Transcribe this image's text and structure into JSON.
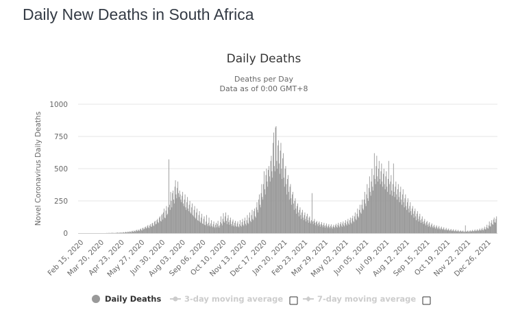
{
  "page": {
    "title": "Daily New Deaths in South Africa"
  },
  "chart_data": {
    "type": "bar",
    "title": "Daily Deaths",
    "subtitle_lines": [
      "Deaths per Day",
      "Data as of 0:00 GMT+8"
    ],
    "xlabel": "",
    "ylabel": "Novel Coronavirus Daily Deaths",
    "ylim": [
      0,
      1000
    ],
    "yticks": [
      0,
      250,
      500,
      750,
      1000
    ],
    "grid": true,
    "x_start_date": "2020-02-10",
    "x_end_date": "2022-01-09",
    "x_tick_labels": [
      "Feb 15, 2020",
      "Mar 20, 2020",
      "Apr 23, 2020",
      "May 27, 2020",
      "Jun 30, 2020",
      "Aug 03, 2020",
      "Sep 06, 2020",
      "Oct 10, 2020",
      "Nov 13, 2020",
      "Dec 17, 2020",
      "Jan 20, 2021",
      "Feb 23, 2021",
      "Mar 29, 2021",
      "May 02, 2021",
      "Jun 05, 2021",
      "Jul 09, 2021",
      "Aug 12, 2021",
      "Sep 15, 2021",
      "Oct 19, 2021",
      "Nov 22, 2021",
      "Dec 26, 2021"
    ],
    "x_tick_day_offsets": [
      5,
      39,
      73,
      107,
      141,
      175,
      209,
      243,
      277,
      311,
      345,
      379,
      413,
      447,
      481,
      515,
      549,
      583,
      617,
      651,
      685
    ],
    "series": [
      {
        "name": "Daily Deaths",
        "color": "#999999",
        "values": [
          0,
          0,
          0,
          0,
          0,
          0,
          0,
          0,
          0,
          0,
          0,
          0,
          0,
          0,
          0,
          0,
          0,
          0,
          0,
          0,
          0,
          0,
          0,
          0,
          0,
          0,
          0,
          0,
          0,
          0,
          0,
          0,
          0,
          0,
          0,
          0,
          0,
          0,
          0,
          0,
          0,
          0,
          0,
          0,
          0,
          0,
          0,
          1,
          0,
          1,
          0,
          2,
          1,
          0,
          1,
          2,
          1,
          3,
          0,
          2,
          1,
          0,
          2,
          1,
          3,
          5,
          2,
          1,
          4,
          3,
          2,
          6,
          3,
          1,
          5,
          8,
          4,
          2,
          6,
          10,
          7,
          3,
          9,
          12,
          5,
          8,
          14,
          10,
          6,
          15,
          18,
          11,
          9,
          20,
          16,
          12,
          22,
          25,
          14,
          18,
          28,
          21,
          17,
          30,
          35,
          24,
          20,
          38,
          42,
          28,
          33,
          45,
          50,
          36,
          40,
          55,
          62,
          44,
          38,
          58,
          70,
          52,
          48,
          75,
          80,
          60,
          55,
          88,
          95,
          68,
          72,
          100,
          110,
          85,
          78,
          120,
          130,
          95,
          90,
          140,
          150,
          105,
          160,
          190,
          120,
          115,
          175,
          210,
          140,
          150,
          200,
          572,
          220,
          180,
          320,
          250,
          200,
          310,
          330,
          260,
          230,
          360,
          410,
          300,
          270,
          350,
          400,
          310,
          280,
          330,
          300,
          260,
          240,
          290,
          320,
          230,
          210,
          260,
          300,
          200,
          180,
          240,
          280,
          190,
          170,
          220,
          250,
          160,
          150,
          200,
          230,
          140,
          130,
          180,
          210,
          120,
          110,
          160,
          190,
          100,
          95,
          140,
          170,
          90,
          80,
          120,
          150,
          75,
          70,
          110,
          130,
          65,
          60,
          90,
          140,
          70,
          55,
          80,
          120,
          60,
          50,
          75,
          100,
          55,
          45,
          70,
          90,
          50,
          40,
          65,
          80,
          45,
          70,
          95,
          55,
          42,
          60,
          85,
          130,
          75,
          60,
          110,
          155,
          90,
          80,
          130,
          160,
          95,
          70,
          115,
          140,
          85,
          65,
          100,
          120,
          70,
          55,
          90,
          105,
          60,
          50,
          80,
          95,
          55,
          48,
          75,
          90,
          52,
          45,
          70,
          100,
          58,
          50,
          85,
          110,
          65,
          55,
          95,
          120,
          72,
          60,
          100,
          140,
          80,
          70,
          120,
          160,
          95,
          85,
          140,
          180,
          110,
          100,
          170,
          190,
          130,
          120,
          200,
          240,
          180,
          160,
          260,
          300,
          220,
          200,
          310,
          380,
          280,
          260,
          380,
          480,
          340,
          300,
          450,
          500,
          400,
          360,
          490,
          520,
          440,
          400,
          560,
          600,
          480,
          430,
          700,
          780,
          520,
          480,
          820,
          830,
          560,
          500,
          680,
          720,
          540,
          460,
          640,
          700,
          500,
          420,
          580,
          620,
          430,
          360,
          500,
          520,
          380,
          300,
          420,
          450,
          320,
          260,
          360,
          380,
          270,
          220,
          300,
          320,
          230,
          180,
          250,
          270,
          190,
          150,
          210,
          230,
          160,
          130,
          180,
          200,
          140,
          110,
          160,
          180,
          120,
          100,
          140,
          160,
          110,
          90,
          130,
          150,
          100,
          80,
          120,
          130,
          90,
          75,
          100,
          310,
          90,
          70,
          95,
          110,
          80,
          60,
          85,
          95,
          70,
          55,
          80,
          90,
          65,
          50,
          70,
          85,
          60,
          45,
          65,
          80,
          55,
          42,
          60,
          75,
          50,
          40,
          58,
          70,
          48,
          38,
          55,
          68,
          45,
          35,
          52,
          65,
          48,
          40,
          60,
          72,
          50,
          42,
          65,
          80,
          55,
          45,
          70,
          85,
          58,
          48,
          75,
          90,
          62,
          52,
          80,
          100,
          68,
          58,
          90,
          110,
          75,
          65,
          100,
          120,
          82,
          72,
          115,
          135,
          95,
          85,
          130,
          160,
          110,
          100,
          150,
          190,
          130,
          120,
          180,
          220,
          160,
          150,
          220,
          260,
          190,
          180,
          260,
          320,
          230,
          210,
          300,
          380,
          270,
          250,
          350,
          440,
          320,
          290,
          400,
          500,
          360,
          330,
          450,
          620,
          420,
          380,
          520,
          600,
          440,
          400,
          500,
          560,
          420,
          380,
          480,
          540,
          400,
          360,
          460,
          500,
          380,
          340,
          440,
          480,
          360,
          320,
          420,
          560,
          380,
          300,
          400,
          450,
          330,
          290,
          380,
          540,
          320,
          280,
          360,
          400,
          300,
          260,
          340,
          380,
          280,
          240,
          320,
          360,
          260,
          220,
          300,
          340,
          240,
          200,
          270,
          300,
          210,
          180,
          240,
          270,
          190,
          160,
          210,
          240,
          170,
          140,
          190,
          210,
          150,
          120,
          170,
          190,
          130,
          100,
          150,
          170,
          110,
          90,
          130,
          150,
          100,
          80,
          110,
          130,
          85,
          70,
          95,
          110,
          75,
          60,
          85,
          95,
          65,
          50,
          75,
          85,
          55,
          45,
          65,
          75,
          50,
          40,
          55,
          65,
          45,
          35,
          50,
          60,
          40,
          30,
          45,
          55,
          35,
          28,
          40,
          50,
          32,
          25,
          35,
          45,
          28,
          22,
          30,
          40,
          25,
          20,
          28,
          35,
          22,
          18,
          25,
          32,
          20,
          15,
          22,
          30,
          18,
          14,
          20,
          28,
          16,
          12,
          18,
          25,
          15,
          10,
          16,
          22,
          14,
          10,
          15,
          20,
          12,
          8,
          14,
          60,
          12,
          10,
          15,
          20,
          13,
          9,
          16,
          22,
          14,
          12,
          18,
          25,
          16,
          14,
          20,
          28,
          18,
          15,
          22,
          30,
          20,
          18,
          25,
          35,
          22,
          20,
          30,
          40,
          25,
          22,
          35,
          50,
          30,
          28,
          45,
          65,
          40,
          35,
          60,
          90,
          55,
          50,
          80,
          100,
          70,
          65,
          105,
          120,
          85,
          80,
          110,
          130
        ]
      }
    ],
    "legend": {
      "position": "bottom-center",
      "items": [
        {
          "label": "Daily Deaths",
          "symbol": "circle",
          "active": true,
          "color": "#999999",
          "has_checkbox": false
        },
        {
          "label": "3-day moving average",
          "symbol": "line-dot",
          "active": false,
          "color": "#cccccc",
          "has_checkbox": true,
          "checked": false
        },
        {
          "label": "7-day moving average",
          "symbol": "line-diamond",
          "active": false,
          "color": "#cccccc",
          "has_checkbox": true,
          "checked": false
        }
      ]
    }
  },
  "colors": {
    "bar": "#999999",
    "grid": "#e6e6e6",
    "axis": "#cccccc",
    "legend_active": "#333333",
    "legend_inactive": "#cccccc"
  }
}
